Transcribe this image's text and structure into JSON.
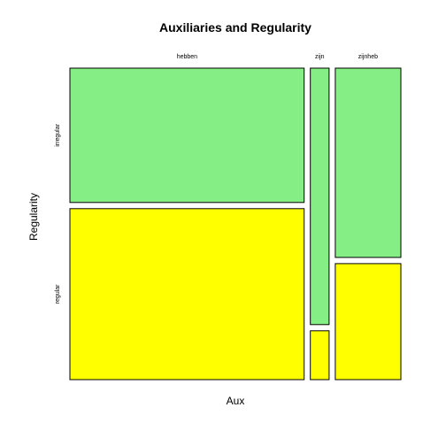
{
  "chart_data": {
    "type": "mosaic",
    "title": "Auxiliaries and Regularity",
    "xlabel": "Aux",
    "ylabel": "Regularity",
    "x_categories": [
      "hebben",
      "zijn",
      "zijnheb"
    ],
    "y_categories": [
      "irregular",
      "regular"
    ],
    "x_proportions": [
      0.75,
      0.06,
      0.21
    ],
    "conditional_proportions": {
      "hebben": {
        "irregular": 0.44,
        "regular": 0.56
      },
      "zijn": {
        "irregular": 0.84,
        "regular": 0.16
      },
      "zijnheb": {
        "irregular": 0.62,
        "regular": 0.38
      }
    },
    "colors": {
      "irregular": "#85ef85",
      "regular": "#ffff00"
    }
  }
}
